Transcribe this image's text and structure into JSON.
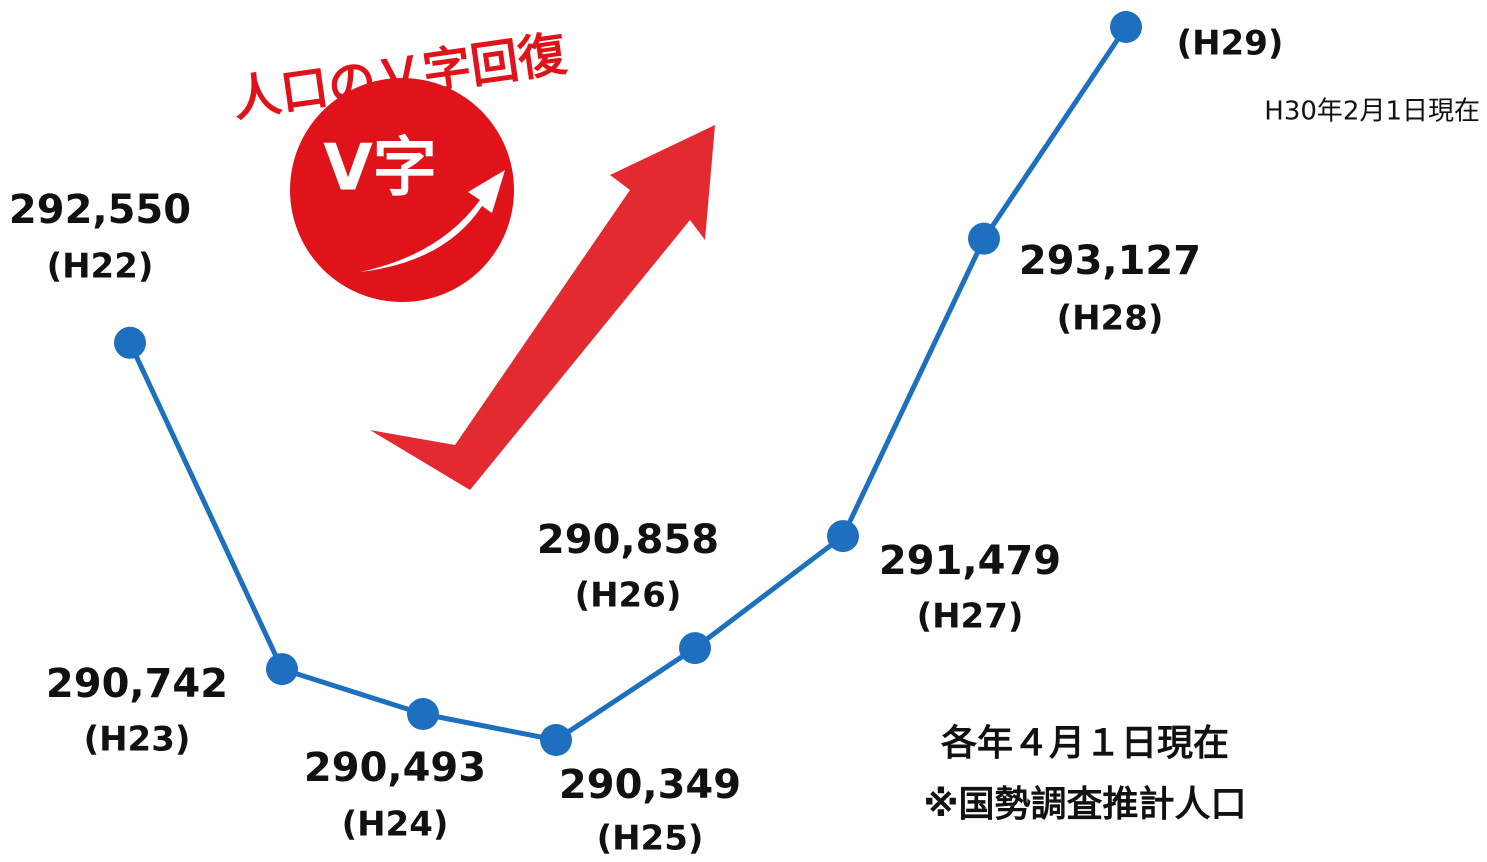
{
  "chart_data": {
    "type": "line",
    "title": "人口のＶ字回復",
    "badge": "V字",
    "notes": [
      "H30年2月1日現在",
      "各年４月１日現在",
      "※国勢調査推計人口"
    ],
    "categories": [
      "(H22)",
      "(H23)",
      "(H24)",
      "(H25)",
      "(H26)",
      "(H27)",
      "(H28)",
      "(H29)"
    ],
    "series": [
      {
        "color": "#1f6fbf",
        "values": [
          292550,
          290742,
          290493,
          290349,
          290858,
          291479,
          293127,
          294300
        ],
        "value_labels": [
          "292,550",
          "290,742",
          "290,493",
          "290,349",
          "290,858",
          "291,479",
          "293,127",
          null
        ]
      }
    ]
  }
}
